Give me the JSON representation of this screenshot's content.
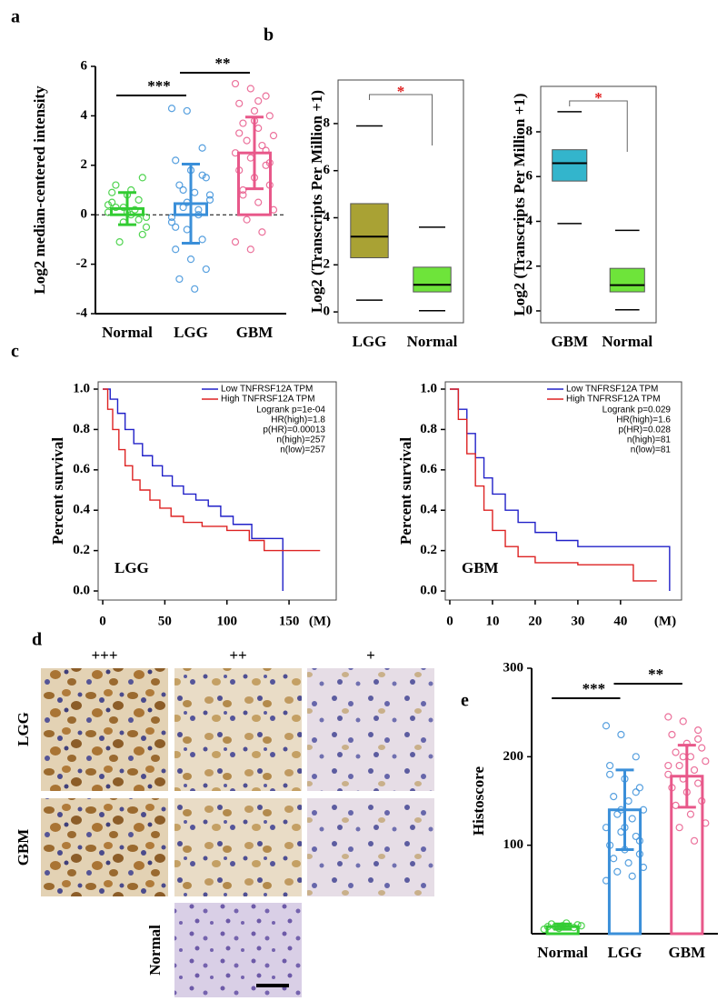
{
  "panel_labels": [
    "a",
    "b",
    "c",
    "d",
    "e"
  ],
  "chart_data": [
    {
      "type": "dotbar",
      "ylabel": "Log2 median-centered intensity",
      "categories": [
        "Normal",
        "LGG",
        "GBM"
      ],
      "colors": [
        "#33cc33",
        "#3a8fd9",
        "#e8588a"
      ],
      "means": [
        0.25,
        0.45,
        2.5
      ],
      "sd": [
        0.65,
        1.6,
        1.45
      ],
      "points": [
        [
          0.1,
          0.3,
          -0.2,
          0.5,
          0.8,
          1.5,
          1.2,
          0.0,
          -0.5,
          -1.1,
          0.2,
          0.4,
          -0.3,
          0.6,
          0.9,
          0.1,
          -0.8,
          0.3,
          1.0,
          -0.1
        ],
        [
          4.3,
          4.2,
          2.7,
          2.2,
          1.8,
          1.5,
          1.2,
          0.9,
          0.6,
          0.3,
          0.0,
          -0.3,
          -0.6,
          -1.0,
          -1.4,
          -1.8,
          -2.2,
          -2.6,
          -3.0,
          0.8,
          1.0,
          0.2,
          -0.1,
          0.5,
          1.6,
          -0.5
        ],
        [
          5.3,
          5.1,
          4.8,
          4.5,
          4.2,
          4.0,
          3.7,
          3.5,
          3.2,
          3.0,
          2.8,
          2.5,
          2.3,
          2.0,
          1.8,
          1.5,
          1.2,
          0.8,
          0.5,
          0.2,
          -0.2,
          -0.7,
          -1.1,
          -1.4,
          2.6,
          3.3,
          3.8,
          2.1,
          1.0,
          4.6
        ]
      ],
      "ylim": [
        -4,
        6
      ],
      "yticks": [
        -4,
        -2,
        0,
        2,
        4,
        6
      ],
      "significance": [
        "***",
        "**"
      ]
    },
    {
      "type": "box",
      "ylabel": "Log2 (Transcripts Per Million +1)",
      "categories": [
        "LGG",
        "Normal"
      ],
      "colors": [
        "#a9a234",
        "#6ee43a"
      ],
      "boxes": [
        {
          "low": 0.5,
          "q1": 2.3,
          "median": 3.2,
          "q3": 4.6,
          "high": 7.9
        },
        {
          "low": 0.05,
          "q1": 0.85,
          "median": 1.15,
          "q3": 1.9,
          "high": 3.6
        }
      ],
      "ylim": [
        -0.46,
        9.85
      ],
      "yticks": [
        0,
        2,
        4,
        6,
        8
      ],
      "significance": [
        "*"
      ]
    },
    {
      "type": "box",
      "ylabel": "Log2 (Transcripts Per Million +1)",
      "categories": [
        "GBM",
        "Normal"
      ],
      "colors": [
        "#33b5cc",
        "#6ee43a"
      ],
      "boxes": [
        {
          "low": 3.9,
          "q1": 5.8,
          "median": 6.6,
          "q3": 7.2,
          "high": 8.9
        },
        {
          "low": 0.05,
          "q1": 0.85,
          "median": 1.15,
          "q3": 1.9,
          "high": 3.6
        }
      ],
      "ylim": [
        -0.53,
        10.03
      ],
      "yticks": [
        0,
        2,
        4,
        6,
        8
      ],
      "significance": [
        "*"
      ]
    },
    {
      "type": "line",
      "ylabel": "Percent survival",
      "xlabel": "(M)",
      "label": "LGG",
      "series": [
        {
          "name": "Low TNFRSF12A TPM",
          "color": "#2020c8",
          "x": [
            0,
            6,
            6,
            12,
            12,
            18,
            18,
            25,
            25,
            32,
            32,
            40,
            40,
            48,
            48,
            56,
            56,
            65,
            65,
            75,
            75,
            85,
            85,
            95,
            95,
            105,
            105,
            120,
            120,
            145,
            145
          ],
          "values": [
            1,
            1,
            0.95,
            0.95,
            0.88,
            0.88,
            0.8,
            0.8,
            0.73,
            0.73,
            0.67,
            0.67,
            0.62,
            0.62,
            0.57,
            0.57,
            0.52,
            0.52,
            0.48,
            0.48,
            0.45,
            0.45,
            0.42,
            0.42,
            0.37,
            0.37,
            0.33,
            0.33,
            0.26,
            0.26,
            0
          ]
        },
        {
          "name": "High TNFRSF12A TPM",
          "color": "#dd2222",
          "x": [
            0,
            4,
            4,
            8,
            8,
            13,
            13,
            18,
            18,
            24,
            24,
            30,
            30,
            38,
            38,
            46,
            46,
            55,
            55,
            65,
            65,
            80,
            80,
            100,
            100,
            118,
            118,
            130,
            130,
            175
          ],
          "values": [
            1,
            1,
            0.9,
            0.9,
            0.8,
            0.8,
            0.7,
            0.7,
            0.62,
            0.62,
            0.55,
            0.55,
            0.5,
            0.5,
            0.45,
            0.45,
            0.41,
            0.41,
            0.37,
            0.37,
            0.34,
            0.34,
            0.32,
            0.32,
            0.3,
            0.3,
            0.25,
            0.25,
            0.2,
            0.2
          ]
        }
      ],
      "stats": [
        "Logrank p=1e-04",
        "HR(high)=1.8",
        "p(HR)=0.00013",
        "n(high)=257",
        "n(low)=257"
      ],
      "xlim": [
        -3.7,
        188
      ],
      "xticks": [
        0,
        50,
        100,
        150
      ],
      "ylim": [
        -0.045,
        1.036
      ],
      "yticks": [
        {
          "value": 0,
          "label": "0.0"
        },
        0.2,
        0.4,
        0.6,
        0.8,
        {
          "value": 1,
          "label": "1.0"
        }
      ]
    },
    {
      "type": "line",
      "ylabel": "Percent survival",
      "xlabel": "(M)",
      "label": "GBM",
      "series": [
        {
          "name": "Low TNFRSF12A TPM",
          "color": "#2020c8",
          "x": [
            0,
            2,
            2,
            4,
            4,
            6,
            6,
            8,
            8,
            10,
            10,
            13,
            13,
            16,
            16,
            20,
            20,
            25,
            25,
            30,
            30,
            51.5,
            51.5
          ],
          "values": [
            1,
            1,
            0.9,
            0.9,
            0.78,
            0.78,
            0.66,
            0.66,
            0.56,
            0.56,
            0.48,
            0.48,
            0.4,
            0.4,
            0.34,
            0.34,
            0.29,
            0.29,
            0.25,
            0.25,
            0.22,
            0.22,
            0
          ]
        },
        {
          "name": "High TNFRSF12A TPM",
          "color": "#dd2222",
          "x": [
            0,
            2,
            2,
            4,
            4,
            6,
            6,
            8,
            8,
            10,
            10,
            13,
            13,
            16,
            16,
            20,
            20,
            30,
            30,
            43,
            43,
            48.5
          ],
          "values": [
            1,
            1,
            0.85,
            0.85,
            0.68,
            0.68,
            0.52,
            0.52,
            0.4,
            0.4,
            0.3,
            0.3,
            0.22,
            0.22,
            0.17,
            0.17,
            0.14,
            0.14,
            0.13,
            0.13,
            0.05,
            0.05
          ]
        }
      ],
      "stats": [
        "Logrank p=0.029",
        "HR(high)=1.6",
        "p(HR)=0.028",
        "n(high)=81",
        "n(low)=81"
      ],
      "xlim": [
        -1.06,
        54.3
      ],
      "xticks": [
        0,
        10,
        20,
        30,
        40
      ],
      "ylim": [
        -0.045,
        1.036
      ],
      "yticks": [
        {
          "value": 0,
          "label": "0.0"
        },
        0.2,
        0.4,
        0.6,
        0.8,
        {
          "value": 1,
          "label": "1.0"
        }
      ]
    },
    {
      "type": "dotbar",
      "ylabel": "Histoscore",
      "categories": [
        "Normal",
        "LGG",
        "GBM"
      ],
      "colors": [
        "#33cc33",
        "#3a8fd9",
        "#e8588a"
      ],
      "means": [
        8,
        140,
        178
      ],
      "sd": [
        3,
        45,
        35
      ],
      "points": [
        [
          5,
          6,
          7,
          8,
          9,
          10,
          11,
          12,
          9,
          8
        ],
        [
          235,
          225,
          200,
          190,
          175,
          165,
          155,
          150,
          140,
          135,
          130,
          120,
          115,
          110,
          100,
          95,
          90,
          85,
          80,
          75,
          70,
          65,
          60,
          140,
          160,
          180,
          120,
          105
        ],
        [
          245,
          240,
          230,
          225,
          215,
          210,
          205,
          200,
          195,
          190,
          185,
          180,
          175,
          170,
          165,
          160,
          150,
          145,
          135,
          125,
          120,
          105,
          190,
          200,
          220
        ]
      ],
      "ylim": [
        0,
        300
      ],
      "yticks": [
        100,
        200,
        300
      ],
      "significance": [
        "***",
        "**"
      ]
    }
  ],
  "ihc_images": {
    "columns": [
      "+++",
      "++",
      "+"
    ],
    "rows": [
      "LGG",
      "GBM",
      "Normal"
    ]
  }
}
